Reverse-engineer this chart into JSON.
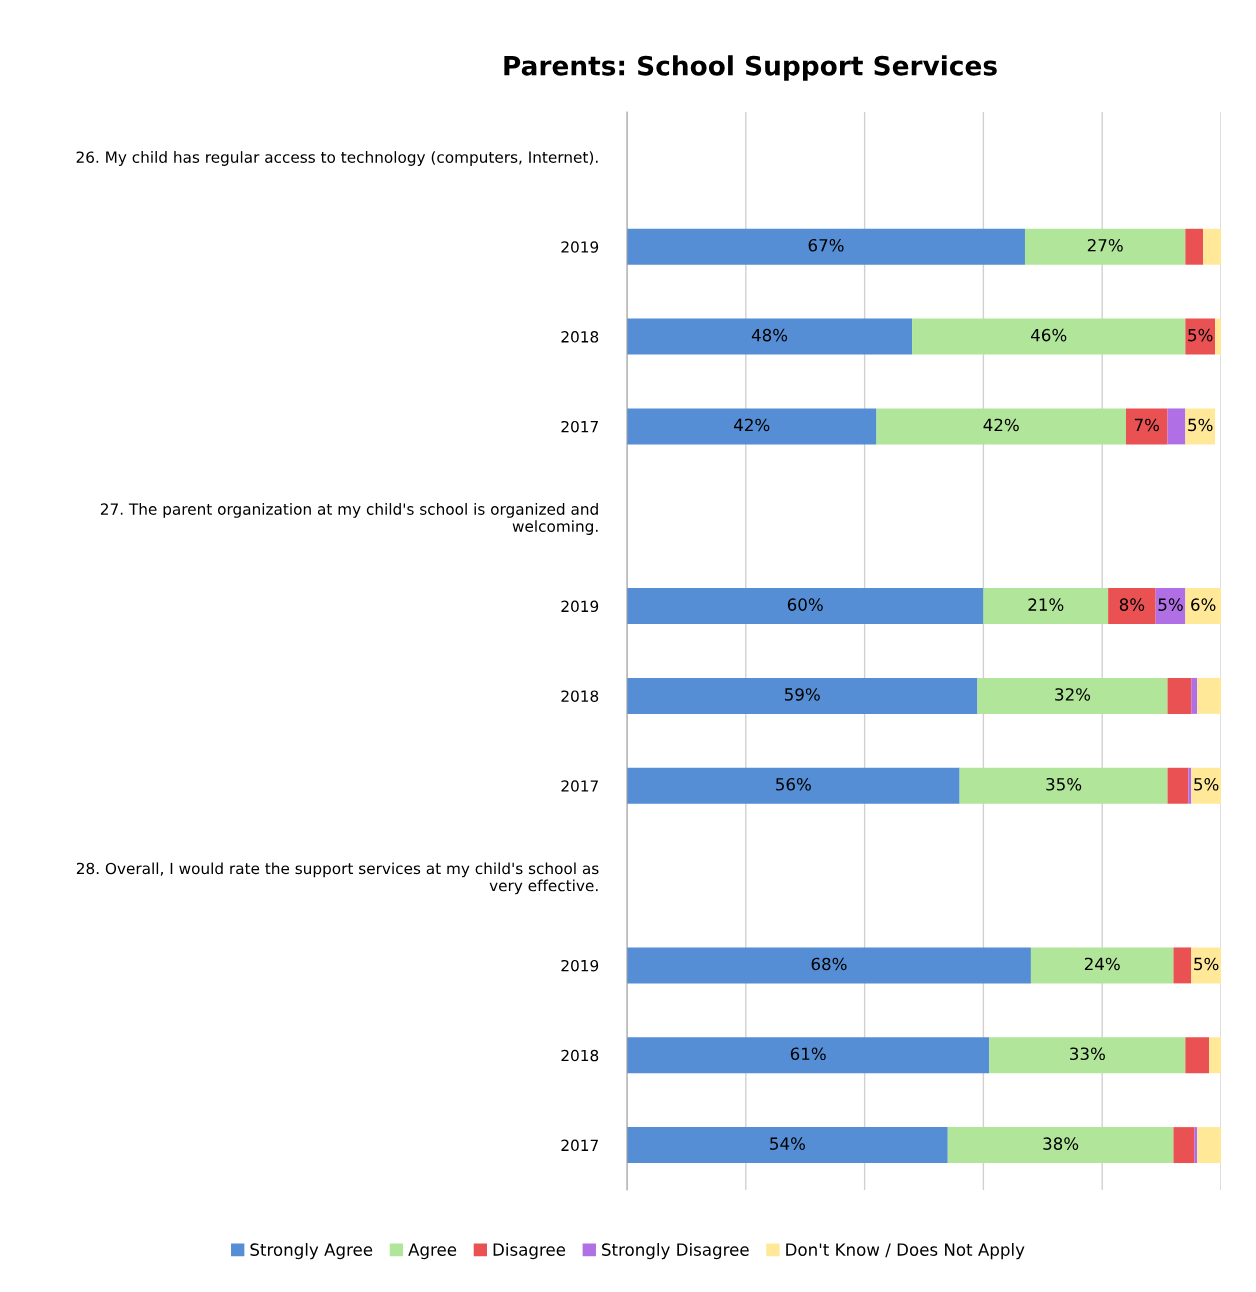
{
  "chart_data": {
    "type": "bar",
    "orientation": "horizontal",
    "stacked": true,
    "title": "Parents: School Support Services",
    "categories": [
      "26. My child has regular access to technology (computers, Internet).",
      "2019",
      "2018",
      "2017",
      "27. The parent organization at my child's school is organized and\nwelcoming.",
      "2019",
      "2018",
      "2017",
      "28. Overall, I would rate the support services at my child's school as\nvery effective.",
      "2019",
      "2018",
      "2017"
    ],
    "series": [
      {
        "name": "Strongly Agree",
        "color": "#558ed5",
        "values": [
          null,
          67,
          48,
          42,
          null,
          60,
          59,
          56,
          null,
          68,
          61,
          54
        ],
        "value_labels": [
          null,
          "67%",
          "48%",
          "42%",
          null,
          "60%",
          "59%",
          "56%",
          null,
          "68%",
          "61%",
          "54%"
        ]
      },
      {
        "name": "Agree",
        "color": "#b0e59a",
        "values": [
          null,
          27,
          46,
          42,
          null,
          21,
          32,
          35,
          null,
          24,
          33,
          38
        ],
        "value_labels": [
          null,
          "27%",
          "46%",
          "42%",
          null,
          "21%",
          "32%",
          "35%",
          null,
          "24%",
          "33%",
          "38%"
        ]
      },
      {
        "name": "Disagree",
        "color": "#ea5153",
        "values": [
          null,
          3,
          5,
          7,
          null,
          8,
          4,
          3.5,
          null,
          3,
          4,
          3.5
        ],
        "value_labels": [
          null,
          null,
          "5%",
          "7%",
          null,
          "8%",
          null,
          null,
          null,
          null,
          null,
          null
        ]
      },
      {
        "name": "Strongly Disagree",
        "color": "#b06fe4",
        "values": [
          null,
          0,
          0,
          3,
          null,
          5,
          1,
          0.5,
          null,
          0,
          0,
          0.5
        ],
        "value_labels": [
          null,
          null,
          null,
          null,
          null,
          "5%",
          null,
          null,
          null,
          null,
          null,
          null
        ]
      },
      {
        "name": "Don't Know / Does Not Apply",
        "color": "#ffe999",
        "values": [
          null,
          3,
          1,
          5,
          null,
          6,
          4,
          5,
          null,
          5,
          2,
          4
        ],
        "value_labels": [
          null,
          null,
          null,
          "5%",
          null,
          "6%",
          null,
          "5%",
          null,
          "5%",
          null,
          null
        ]
      }
    ],
    "xlim": [
      0,
      100
    ],
    "xticks": [
      {
        "value": 0,
        "label": null
      },
      {
        "value": 20,
        "label": null
      },
      {
        "value": 40,
        "label": null
      },
      {
        "value": 60,
        "label": null
      },
      {
        "value": 80,
        "label": null
      },
      {
        "value": 100,
        "label": null
      }
    ],
    "tick_labels": "y",
    "grid": "x",
    "legend": "bottom"
  }
}
